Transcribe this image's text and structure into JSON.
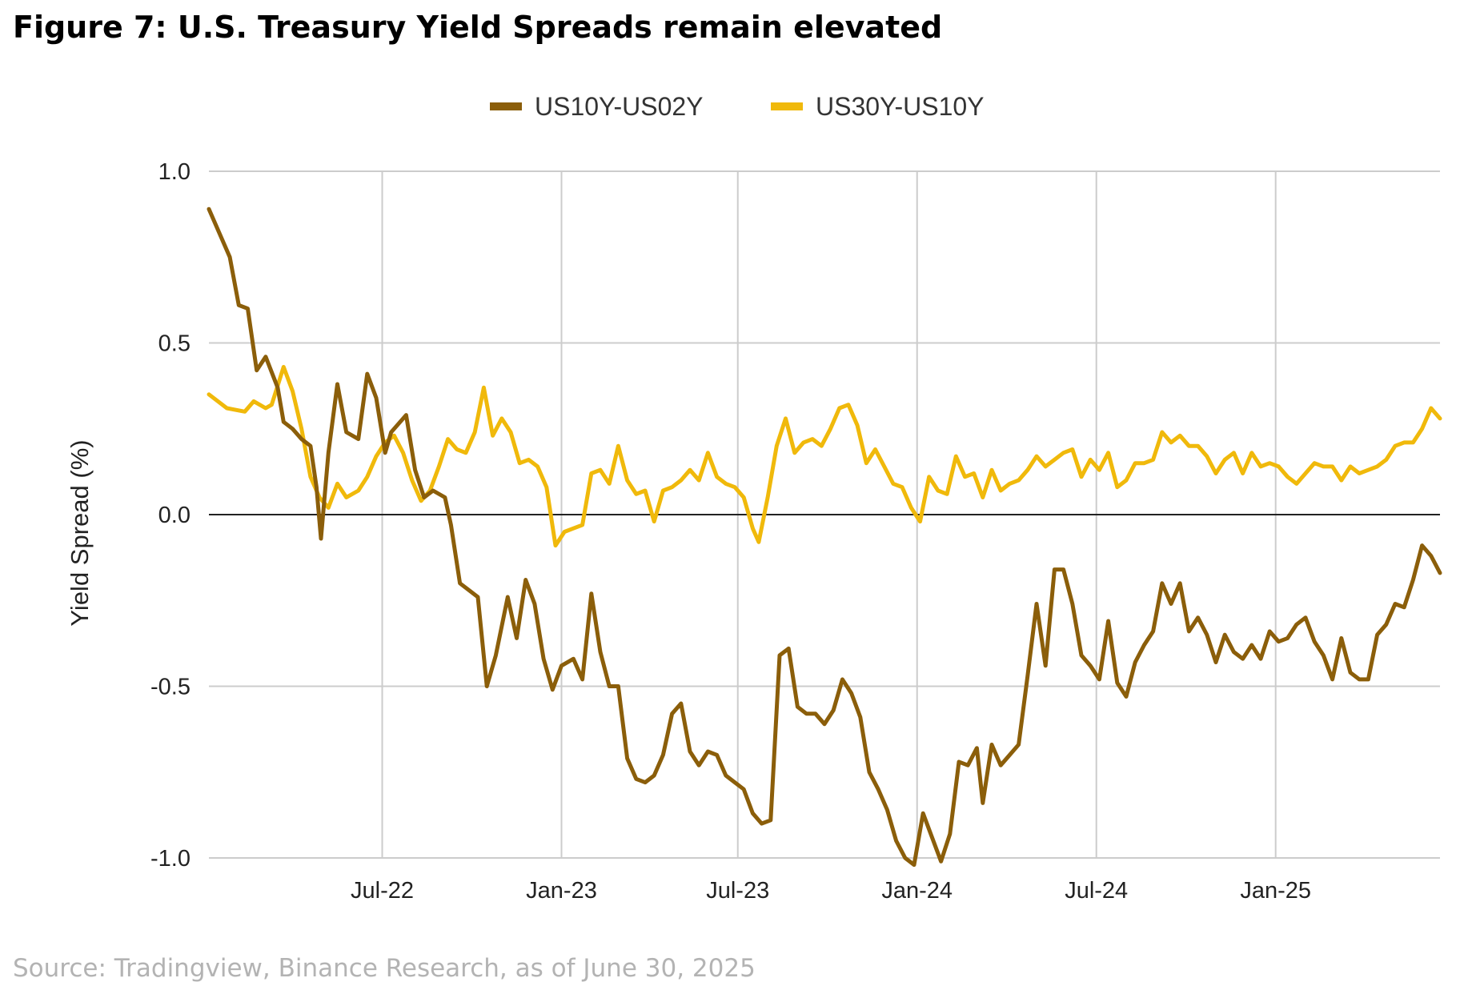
{
  "title": "Figure 7: U.S. Treasury Yield Spreads remain elevated",
  "source": "Source: Tradingview, Binance Research, as of June 30, 2025",
  "chart_data": {
    "type": "line",
    "ylabel": "Yield Spread (%)",
    "xlabel": "",
    "ylim": [
      -1.0,
      1.0
    ],
    "yticks": [
      1.0,
      0.5,
      0.0,
      -0.5,
      -1.0
    ],
    "ytick_labels": [
      "1.0",
      "0.5",
      "0.0",
      "-0.5",
      "-1.0"
    ],
    "xlim": [
      0,
      41.2
    ],
    "xticks": [
      5.8,
      11.8,
      17.7,
      23.7,
      29.7,
      35.7
    ],
    "xtick_labels": [
      "Jul-22",
      "Jan-23",
      "Jul-23",
      "Jan-24",
      "Jul-24",
      "Jan-25"
    ],
    "x_unit": "months since Jan 2022",
    "grid": true,
    "legend_position": "top-center",
    "series": [
      {
        "name": "US10Y-US02Y",
        "color": "#8B5E0A",
        "points": [
          [
            0.0,
            0.89
          ],
          [
            0.7,
            0.75
          ],
          [
            1.0,
            0.61
          ],
          [
            1.3,
            0.6
          ],
          [
            1.6,
            0.42
          ],
          [
            1.9,
            0.46
          ],
          [
            2.3,
            0.37
          ],
          [
            2.5,
            0.27
          ],
          [
            2.8,
            0.25
          ],
          [
            3.1,
            0.22
          ],
          [
            3.4,
            0.2
          ],
          [
            3.6,
            0.08
          ],
          [
            3.75,
            -0.07
          ],
          [
            4.0,
            0.18
          ],
          [
            4.3,
            0.38
          ],
          [
            4.6,
            0.24
          ],
          [
            5.0,
            0.22
          ],
          [
            5.3,
            0.41
          ],
          [
            5.6,
            0.34
          ],
          [
            5.9,
            0.18
          ],
          [
            6.1,
            0.24
          ],
          [
            6.6,
            0.29
          ],
          [
            6.9,
            0.13
          ],
          [
            7.2,
            0.05
          ],
          [
            7.5,
            0.07
          ],
          [
            7.9,
            0.05
          ],
          [
            8.1,
            -0.03
          ],
          [
            8.4,
            -0.2
          ],
          [
            8.7,
            -0.22
          ],
          [
            9.0,
            -0.24
          ],
          [
            9.3,
            -0.5
          ],
          [
            9.6,
            -0.41
          ],
          [
            10.0,
            -0.24
          ],
          [
            10.3,
            -0.36
          ],
          [
            10.6,
            -0.19
          ],
          [
            10.9,
            -0.26
          ],
          [
            11.2,
            -0.42
          ],
          [
            11.5,
            -0.51
          ],
          [
            11.8,
            -0.44
          ],
          [
            12.2,
            -0.42
          ],
          [
            12.5,
            -0.48
          ],
          [
            12.8,
            -0.23
          ],
          [
            13.1,
            -0.4
          ],
          [
            13.4,
            -0.5
          ],
          [
            13.7,
            -0.5
          ],
          [
            14.0,
            -0.71
          ],
          [
            14.3,
            -0.77
          ],
          [
            14.6,
            -0.78
          ],
          [
            14.9,
            -0.76
          ],
          [
            15.2,
            -0.7
          ],
          [
            15.5,
            -0.58
          ],
          [
            15.8,
            -0.55
          ],
          [
            16.1,
            -0.69
          ],
          [
            16.4,
            -0.73
          ],
          [
            16.7,
            -0.69
          ],
          [
            17.0,
            -0.7
          ],
          [
            17.3,
            -0.76
          ],
          [
            17.6,
            -0.78
          ],
          [
            17.9,
            -0.8
          ],
          [
            18.2,
            -0.87
          ],
          [
            18.5,
            -0.9
          ],
          [
            18.8,
            -0.89
          ],
          [
            19.1,
            -0.41
          ],
          [
            19.4,
            -0.39
          ],
          [
            19.7,
            -0.56
          ],
          [
            20.0,
            -0.58
          ],
          [
            20.3,
            -0.58
          ],
          [
            20.6,
            -0.61
          ],
          [
            20.9,
            -0.57
          ],
          [
            21.2,
            -0.48
          ],
          [
            21.5,
            -0.52
          ],
          [
            21.8,
            -0.59
          ],
          [
            22.1,
            -0.75
          ],
          [
            22.4,
            -0.8
          ],
          [
            22.7,
            -0.86
          ],
          [
            23.0,
            -0.95
          ],
          [
            23.3,
            -1.0
          ],
          [
            23.6,
            -1.02
          ],
          [
            23.9,
            -0.87
          ],
          [
            24.2,
            -0.94
          ],
          [
            24.5,
            -1.01
          ],
          [
            24.8,
            -0.93
          ],
          [
            25.1,
            -0.72
          ],
          [
            25.4,
            -0.73
          ],
          [
            25.7,
            -0.68
          ],
          [
            25.9,
            -0.84
          ],
          [
            26.2,
            -0.67
          ],
          [
            26.5,
            -0.73
          ],
          [
            26.8,
            -0.7
          ],
          [
            27.1,
            -0.67
          ],
          [
            27.4,
            -0.47
          ],
          [
            27.7,
            -0.26
          ],
          [
            28.0,
            -0.44
          ],
          [
            28.3,
            -0.16
          ],
          [
            28.6,
            -0.16
          ],
          [
            28.9,
            -0.26
          ],
          [
            29.2,
            -0.41
          ],
          [
            29.5,
            -0.44
          ],
          [
            29.8,
            -0.48
          ],
          [
            30.1,
            -0.31
          ],
          [
            30.4,
            -0.49
          ],
          [
            30.7,
            -0.53
          ],
          [
            31.0,
            -0.43
          ],
          [
            31.3,
            -0.38
          ],
          [
            31.6,
            -0.34
          ],
          [
            31.9,
            -0.2
          ],
          [
            32.2,
            -0.26
          ],
          [
            32.5,
            -0.2
          ],
          [
            32.8,
            -0.34
          ],
          [
            33.1,
            -0.3
          ],
          [
            33.4,
            -0.35
          ],
          [
            33.7,
            -0.43
          ],
          [
            34.0,
            -0.35
          ],
          [
            34.3,
            -0.4
          ],
          [
            34.6,
            -0.42
          ],
          [
            34.9,
            -0.38
          ],
          [
            35.2,
            -0.42
          ],
          [
            35.5,
            -0.34
          ],
          [
            35.8,
            -0.37
          ],
          [
            36.1,
            -0.36
          ],
          [
            36.4,
            -0.32
          ],
          [
            36.7,
            -0.3
          ],
          [
            37.0,
            -0.37
          ],
          [
            37.3,
            -0.41
          ],
          [
            37.6,
            -0.48
          ],
          [
            37.9,
            -0.36
          ],
          [
            38.2,
            -0.46
          ],
          [
            38.5,
            -0.48
          ],
          [
            38.8,
            -0.48
          ],
          [
            39.1,
            -0.35
          ],
          [
            39.4,
            -0.32
          ],
          [
            39.7,
            -0.26
          ],
          [
            40.0,
            -0.27
          ],
          [
            40.3,
            -0.19
          ],
          [
            40.6,
            -0.09
          ],
          [
            40.9,
            -0.12
          ],
          [
            41.2,
            -0.17
          ]
        ]
      },
      {
        "name": "US30Y-US10Y",
        "color": "#F0B90B",
        "points": [
          [
            0.0,
            0.35
          ],
          [
            0.6,
            0.31
          ],
          [
            1.2,
            0.3
          ],
          [
            1.5,
            0.33
          ],
          [
            1.9,
            0.31
          ],
          [
            2.1,
            0.32
          ],
          [
            2.5,
            0.43
          ],
          [
            2.8,
            0.36
          ],
          [
            3.1,
            0.25
          ],
          [
            3.4,
            0.11
          ],
          [
            3.7,
            0.05
          ],
          [
            4.0,
            0.02
          ],
          [
            4.3,
            0.09
          ],
          [
            4.6,
            0.05
          ],
          [
            5.0,
            0.07
          ],
          [
            5.3,
            0.11
          ],
          [
            5.6,
            0.17
          ],
          [
            5.9,
            0.21
          ],
          [
            6.2,
            0.23
          ],
          [
            6.5,
            0.18
          ],
          [
            6.8,
            0.1
          ],
          [
            7.1,
            0.04
          ],
          [
            7.4,
            0.07
          ],
          [
            7.7,
            0.14
          ],
          [
            8.0,
            0.22
          ],
          [
            8.3,
            0.19
          ],
          [
            8.6,
            0.18
          ],
          [
            8.9,
            0.24
          ],
          [
            9.2,
            0.37
          ],
          [
            9.5,
            0.23
          ],
          [
            9.8,
            0.28
          ],
          [
            10.1,
            0.24
          ],
          [
            10.4,
            0.15
          ],
          [
            10.7,
            0.16
          ],
          [
            11.0,
            0.14
          ],
          [
            11.3,
            0.08
          ],
          [
            11.6,
            -0.09
          ],
          [
            11.9,
            -0.05
          ],
          [
            12.2,
            -0.04
          ],
          [
            12.5,
            -0.03
          ],
          [
            12.8,
            0.12
          ],
          [
            13.1,
            0.13
          ],
          [
            13.4,
            0.09
          ],
          [
            13.7,
            0.2
          ],
          [
            14.0,
            0.1
          ],
          [
            14.3,
            0.06
          ],
          [
            14.6,
            0.07
          ],
          [
            14.9,
            -0.02
          ],
          [
            15.2,
            0.07
          ],
          [
            15.5,
            0.08
          ],
          [
            15.8,
            0.1
          ],
          [
            16.1,
            0.13
          ],
          [
            16.4,
            0.1
          ],
          [
            16.7,
            0.18
          ],
          [
            17.0,
            0.11
          ],
          [
            17.3,
            0.09
          ],
          [
            17.6,
            0.08
          ],
          [
            17.9,
            0.05
          ],
          [
            18.2,
            -0.04
          ],
          [
            18.4,
            -0.08
          ],
          [
            18.7,
            0.05
          ],
          [
            19.0,
            0.2
          ],
          [
            19.3,
            0.28
          ],
          [
            19.6,
            0.18
          ],
          [
            19.9,
            0.21
          ],
          [
            20.2,
            0.22
          ],
          [
            20.5,
            0.2
          ],
          [
            20.8,
            0.25
          ],
          [
            21.1,
            0.31
          ],
          [
            21.4,
            0.32
          ],
          [
            21.7,
            0.26
          ],
          [
            22.0,
            0.15
          ],
          [
            22.3,
            0.19
          ],
          [
            22.6,
            0.14
          ],
          [
            22.9,
            0.09
          ],
          [
            23.2,
            0.08
          ],
          [
            23.5,
            0.02
          ],
          [
            23.8,
            -0.02
          ],
          [
            24.1,
            0.11
          ],
          [
            24.4,
            0.07
          ],
          [
            24.7,
            0.06
          ],
          [
            25.0,
            0.17
          ],
          [
            25.3,
            0.11
          ],
          [
            25.6,
            0.12
          ],
          [
            25.9,
            0.05
          ],
          [
            26.2,
            0.13
          ],
          [
            26.5,
            0.07
          ],
          [
            26.8,
            0.09
          ],
          [
            27.1,
            0.1
          ],
          [
            27.4,
            0.13
          ],
          [
            27.7,
            0.17
          ],
          [
            28.0,
            0.14
          ],
          [
            28.3,
            0.16
          ],
          [
            28.6,
            0.18
          ],
          [
            28.9,
            0.19
          ],
          [
            29.2,
            0.11
          ],
          [
            29.5,
            0.16
          ],
          [
            29.8,
            0.13
          ],
          [
            30.1,
            0.18
          ],
          [
            30.4,
            0.08
          ],
          [
            30.7,
            0.1
          ],
          [
            31.0,
            0.15
          ],
          [
            31.3,
            0.15
          ],
          [
            31.6,
            0.16
          ],
          [
            31.9,
            0.24
          ],
          [
            32.2,
            0.21
          ],
          [
            32.5,
            0.23
          ],
          [
            32.8,
            0.2
          ],
          [
            33.1,
            0.2
          ],
          [
            33.4,
            0.17
          ],
          [
            33.7,
            0.12
          ],
          [
            34.0,
            0.16
          ],
          [
            34.3,
            0.18
          ],
          [
            34.6,
            0.12
          ],
          [
            34.9,
            0.18
          ],
          [
            35.2,
            0.14
          ],
          [
            35.5,
            0.15
          ],
          [
            35.8,
            0.14
          ],
          [
            36.1,
            0.11
          ],
          [
            36.4,
            0.09
          ],
          [
            36.7,
            0.12
          ],
          [
            37.0,
            0.15
          ],
          [
            37.3,
            0.14
          ],
          [
            37.6,
            0.14
          ],
          [
            37.9,
            0.1
          ],
          [
            38.2,
            0.14
          ],
          [
            38.5,
            0.12
          ],
          [
            38.8,
            0.13
          ],
          [
            39.1,
            0.14
          ],
          [
            39.4,
            0.16
          ],
          [
            39.7,
            0.2
          ],
          [
            40.0,
            0.21
          ],
          [
            40.3,
            0.21
          ],
          [
            40.6,
            0.25
          ],
          [
            40.9,
            0.31
          ],
          [
            41.2,
            0.28
          ]
        ]
      }
    ]
  }
}
